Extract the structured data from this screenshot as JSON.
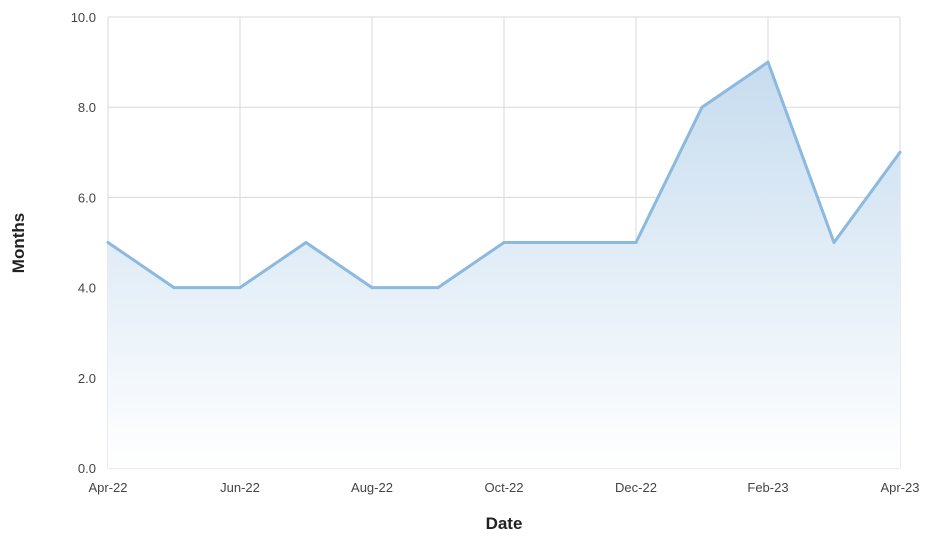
{
  "chart_data": {
    "type": "area",
    "title": "",
    "xlabel": "Date",
    "ylabel": "Months",
    "x": [
      "2022-04",
      "2022-05",
      "2022-06",
      "2022-07",
      "2022-08",
      "2022-09",
      "2022-10",
      "2022-11",
      "2022-12",
      "2023-01",
      "2023-02",
      "2023-03",
      "2023-04"
    ],
    "values": [
      5,
      4,
      4,
      5,
      4,
      4,
      5,
      5,
      5,
      8,
      9,
      5,
      7
    ],
    "xticks": [
      "Apr-22",
      "Jun-22",
      "Aug-22",
      "Oct-22",
      "Dec-22",
      "Feb-23",
      "Apr-23"
    ],
    "yticks": [
      "0.0",
      "2.0",
      "4.0",
      "6.0",
      "8.0",
      "10.0"
    ],
    "ylim": [
      0,
      10
    ],
    "grid": true,
    "colors": {
      "line": "#8bb9e0",
      "fill_top": "#c6dcef",
      "fill_bottom": "#ffffff",
      "grid": "#d9d9d9"
    }
  }
}
